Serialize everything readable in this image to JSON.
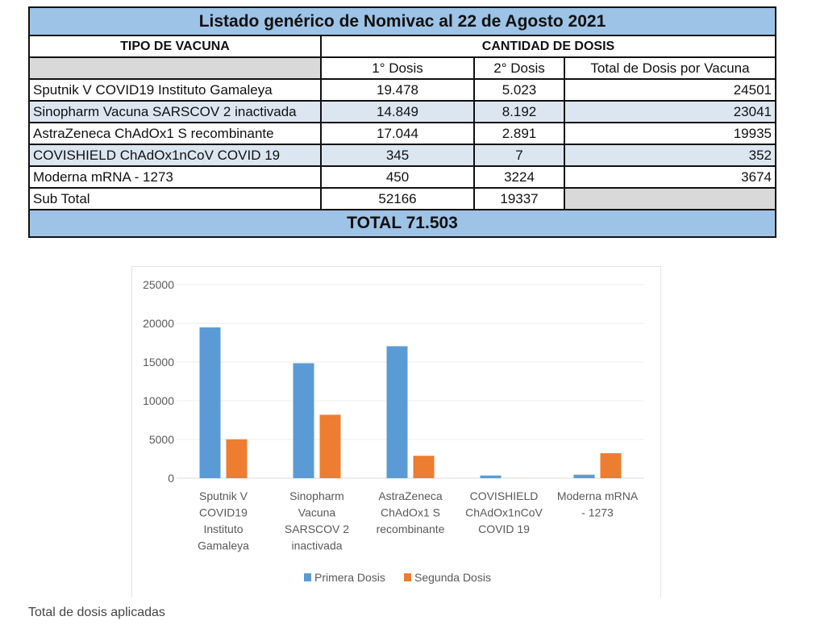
{
  "table": {
    "title": "Listado genérico de Nomivac al 22 de Agosto 2021",
    "col_tipo": "TIPO DE VACUNA",
    "col_cantidad": "CANTIDAD DE DOSIS",
    "sub_headers": [
      "1° Dosis",
      "2° Dosis",
      "Total de Dosis por Vacuna"
    ],
    "rows": [
      {
        "name": "Sputnik V COVID19 Instituto Gamaleya",
        "d1": "19.478",
        "d2": "5.023",
        "total": "24501"
      },
      {
        "name": "Sinopharm Vacuna SARSCOV 2 inactivada",
        "d1": "14.849",
        "d2": "8.192",
        "total": "23041"
      },
      {
        "name": "AstraZeneca ChAdOx1 S recombinante",
        "d1": "17.044",
        "d2": "2.891",
        "total": "19935"
      },
      {
        "name": "COVISHIELD ChAdOx1nCoV COVID 19",
        "d1": "345",
        "d2": "7",
        "total": "352"
      },
      {
        "name": "Moderna mRNA - 1273",
        "d1": "450",
        "d2": "3224",
        "total": "3674"
      }
    ],
    "subtotal": {
      "label": "Sub Total",
      "d1": "52166",
      "d2": "19337"
    },
    "total": "TOTAL 71.503"
  },
  "chart_data": {
    "type": "bar",
    "categories": [
      [
        "Sputnik V",
        "COVID19",
        "Instituto",
        "Gamaleya"
      ],
      [
        "Sinopharm",
        "Vacuna",
        "SARSCOV 2",
        "inactivada"
      ],
      [
        "AstraZeneca",
        "ChAdOx1 S",
        "recombinante"
      ],
      [
        "COVISHIELD",
        "ChAdOx1nCoV",
        "COVID 19"
      ],
      [
        "Moderna mRNA",
        "- 1273"
      ]
    ],
    "series": [
      {
        "name": "Primera Dosis",
        "color": "#5b9bd5",
        "values": [
          19478,
          14849,
          17044,
          345,
          450
        ]
      },
      {
        "name": "Segunda Dosis",
        "color": "#ed7d31",
        "values": [
          5023,
          8192,
          2891,
          7,
          3224
        ]
      }
    ],
    "yticks": [
      "0",
      "5000",
      "10000",
      "15000",
      "20000",
      "25000"
    ],
    "ylim": [
      0,
      25000
    ],
    "grid": true,
    "legend": "bottom",
    "title": "",
    "xlabel": "",
    "ylabel": ""
  },
  "caption": "Total de dosis aplicadas"
}
